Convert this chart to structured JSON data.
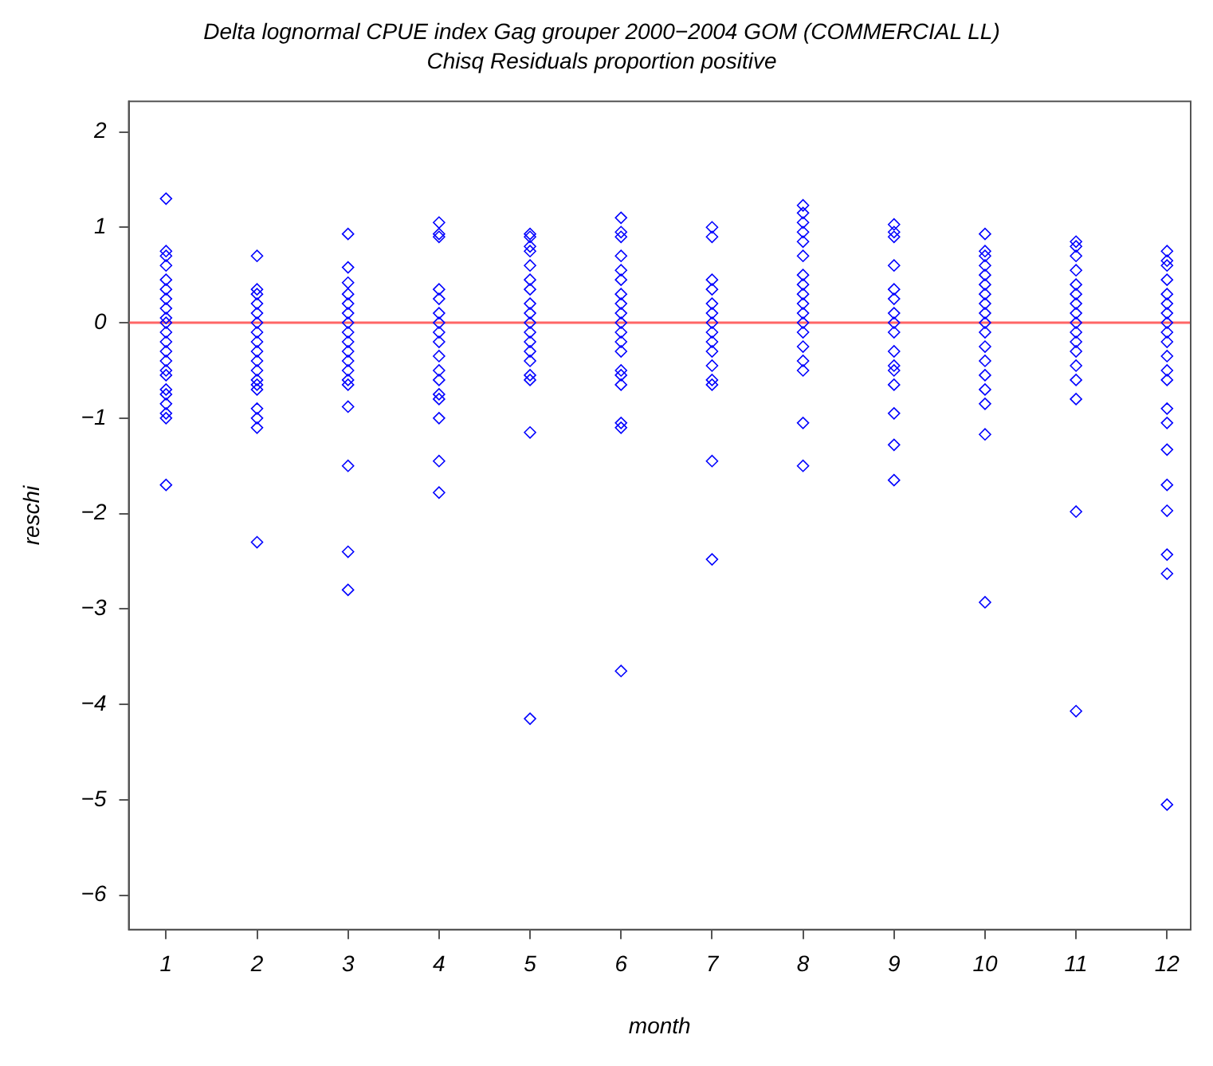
{
  "chart_data": {
    "type": "scatter",
    "title": "Delta lognormal CPUE index Gag grouper 2000−2004 GOM (COMMERCIAL LL)",
    "subtitle": "Chisq Residuals proportion positive",
    "xlabel": "month",
    "ylabel": "reschi",
    "xlim": [
      0.59,
      12.26
    ],
    "xticks": [
      1,
      2,
      3,
      4,
      5,
      6,
      7,
      8,
      9,
      10,
      11,
      12
    ],
    "ylim": [
      -6.36,
      2.32
    ],
    "yticks": [
      -6,
      -5,
      -4,
      -3,
      -2,
      -1,
      0,
      1,
      2
    ],
    "marker": "diamond",
    "grid": false,
    "legend": false,
    "ref_lines": [
      {
        "axis": "y",
        "value": 0,
        "color": "#ff6666",
        "line_style": "solid"
      }
    ],
    "series": [
      {
        "color": "#0000ff",
        "x": [
          1,
          1,
          1,
          1,
          1,
          1,
          1,
          1,
          1,
          1,
          1,
          1,
          1,
          1,
          1,
          1,
          1,
          1,
          1,
          1,
          1,
          1,
          2,
          2,
          2,
          2,
          2,
          2,
          2,
          2,
          2,
          2,
          2,
          2,
          2,
          2,
          2,
          2,
          2,
          2,
          3,
          3,
          3,
          3,
          3,
          3,
          3,
          3,
          3,
          3,
          3,
          3,
          3,
          3,
          3,
          3,
          3,
          3,
          4,
          4,
          4,
          4,
          4,
          4,
          4,
          4,
          4,
          4,
          4,
          4,
          4,
          4,
          4,
          4,
          4,
          5,
          5,
          5,
          5,
          5,
          5,
          5,
          5,
          5,
          5,
          5,
          5,
          5,
          5,
          5,
          5,
          5,
          5,
          6,
          6,
          6,
          6,
          6,
          6,
          6,
          6,
          6,
          6,
          6,
          6,
          6,
          6,
          6,
          6,
          6,
          6,
          6,
          7,
          7,
          7,
          7,
          7,
          7,
          7,
          7,
          7,
          7,
          7,
          7,
          7,
          7,
          7,
          8,
          8,
          8,
          8,
          8,
          8,
          8,
          8,
          8,
          8,
          8,
          8,
          8,
          8,
          8,
          8,
          8,
          8,
          9,
          9,
          9,
          9,
          9,
          9,
          9,
          9,
          9,
          9,
          9,
          9,
          9,
          9,
          9,
          9,
          10,
          10,
          10,
          10,
          10,
          10,
          10,
          10,
          10,
          10,
          10,
          10,
          10,
          10,
          10,
          10,
          10,
          10,
          11,
          11,
          11,
          11,
          11,
          11,
          11,
          11,
          11,
          11,
          11,
          11,
          11,
          11,
          11,
          11,
          11,
          12,
          12,
          12,
          12,
          12,
          12,
          12,
          12,
          12,
          12,
          12,
          12,
          12,
          12,
          12,
          12,
          12,
          12,
          12,
          12,
          12
        ],
        "values": [
          1.3,
          0.75,
          0.7,
          0.6,
          0.45,
          0.35,
          0.25,
          0.15,
          0.05,
          0,
          -0.1,
          -0.2,
          -0.3,
          -0.4,
          -0.5,
          -0.55,
          -0.7,
          -0.75,
          -0.85,
          -0.95,
          -1.0,
          -1.7,
          0.7,
          0.35,
          0.3,
          0.2,
          0.1,
          0,
          -0.1,
          -0.2,
          -0.3,
          -0.4,
          -0.5,
          -0.6,
          -0.65,
          -0.7,
          -0.9,
          -1.0,
          -1.1,
          -2.3,
          0.93,
          0.58,
          0.42,
          0.3,
          0.2,
          0.1,
          0,
          -0.1,
          -0.2,
          -0.3,
          -0.4,
          -0.5,
          -0.6,
          -0.65,
          -0.88,
          -1.5,
          -2.4,
          -2.8,
          1.05,
          0.93,
          0.9,
          0.35,
          0.25,
          0.1,
          0,
          -0.1,
          -0.2,
          -0.35,
          -0.5,
          -0.6,
          -0.75,
          -0.8,
          -1.0,
          -1.45,
          -1.78,
          0.93,
          0.9,
          0.8,
          0.75,
          0.6,
          0.45,
          0.35,
          0.2,
          0.1,
          0,
          -0.1,
          -0.2,
          -0.3,
          -0.4,
          -0.55,
          -0.6,
          -1.15,
          -4.15,
          1.1,
          0.95,
          0.9,
          0.7,
          0.55,
          0.45,
          0.3,
          0.2,
          0.1,
          0,
          -0.1,
          -0.2,
          -0.3,
          -0.5,
          -0.55,
          -0.65,
          -1.05,
          -1.1,
          -3.65,
          1.0,
          0.9,
          0.45,
          0.35,
          0.2,
          0.1,
          0,
          -0.1,
          -0.2,
          -0.3,
          -0.45,
          -0.6,
          -0.65,
          -1.45,
          -2.48,
          1.23,
          1.15,
          1.05,
          0.95,
          0.85,
          0.7,
          0.5,
          0.4,
          0.3,
          0.2,
          0.1,
          0,
          -0.1,
          -0.25,
          -0.4,
          -0.5,
          -1.05,
          -1.5,
          1.03,
          0.95,
          0.9,
          0.6,
          0.35,
          0.25,
          0.1,
          0,
          -0.1,
          -0.3,
          -0.45,
          -0.5,
          -0.65,
          -0.95,
          -1.28,
          -1.65,
          0.93,
          0.75,
          0.7,
          0.6,
          0.5,
          0.4,
          0.3,
          0.2,
          0.1,
          0,
          -0.1,
          -0.25,
          -0.4,
          -0.55,
          -0.7,
          -0.85,
          -1.17,
          -2.93,
          0.85,
          0.8,
          0.7,
          0.55,
          0.4,
          0.3,
          0.2,
          0.1,
          0,
          -0.1,
          -0.2,
          -0.3,
          -0.45,
          -0.6,
          -0.8,
          -1.98,
          -4.07,
          0.75,
          0.65,
          0.6,
          0.45,
          0.3,
          0.2,
          0.1,
          0,
          -0.1,
          -0.2,
          -0.35,
          -0.5,
          -0.6,
          -0.9,
          -1.05,
          -1.33,
          -1.7,
          -1.97,
          -2.43,
          -2.63,
          -5.05
        ]
      }
    ]
  }
}
